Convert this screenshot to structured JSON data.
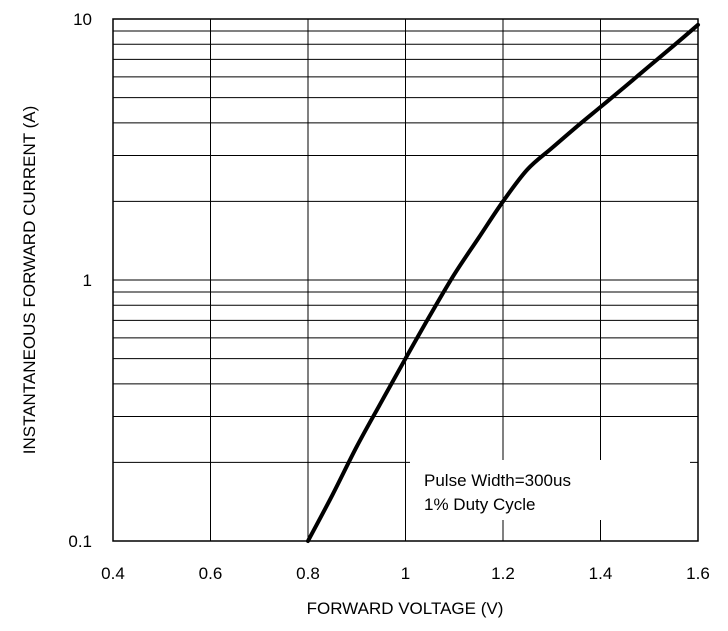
{
  "chart_data": {
    "type": "line",
    "xlabel": "FORWARD VOLTAGE (V)",
    "ylabel": "INSTANTANEOUS FORWARD CURRENT (A)",
    "x_ticks": [
      "0.4",
      "0.6",
      "0.8",
      "1",
      "1.2",
      "1.4",
      "1.6"
    ],
    "y_ticks": [
      "0.1",
      "1",
      "10"
    ],
    "xlim": [
      0.4,
      1.6
    ],
    "ylim": [
      0.1,
      10
    ],
    "y_scale": "log",
    "grid": true,
    "annotation": [
      "Pulse Width=300us",
      "1% Duty Cycle"
    ],
    "series": [
      {
        "x": [
          0.8,
          0.85,
          0.9,
          0.95,
          1.0,
          1.05,
          1.1,
          1.15,
          1.2,
          1.25,
          1.3,
          1.35,
          1.4,
          1.45,
          1.5,
          1.55,
          1.6
        ],
        "y": [
          0.1,
          0.15,
          0.23,
          0.34,
          0.5,
          0.73,
          1.05,
          1.45,
          2.0,
          2.65,
          3.2,
          3.85,
          4.6,
          5.5,
          6.6,
          7.9,
          9.5
        ]
      }
    ]
  }
}
